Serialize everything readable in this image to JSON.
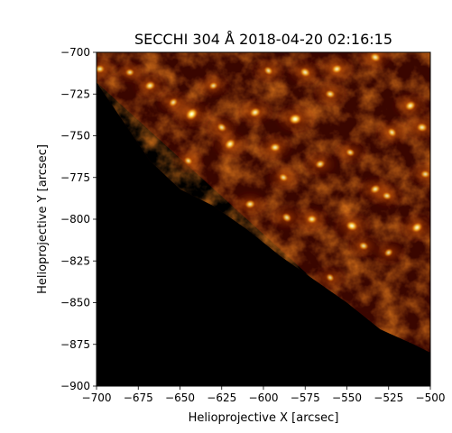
{
  "figure": {
    "title": "SECCHI 304 Å 2018-04-20 02:16:15",
    "xlabel": "Helioprojective X [arcsec]",
    "ylabel": "Helioprojective Y [arcsec]"
  },
  "axes": {
    "x_range": [
      -700,
      -500
    ],
    "y_range": [
      -900,
      -700
    ],
    "x_ticks": [
      -700,
      -675,
      -650,
      -625,
      -600,
      -575,
      -550,
      -525,
      -500
    ],
    "x_tick_labels": [
      "−700",
      "−675",
      "−650",
      "−625",
      "−600",
      "−575",
      "−550",
      "−525",
      "−500"
    ],
    "y_ticks": [
      -700,
      -725,
      -750,
      -775,
      -800,
      -825,
      -850,
      -875,
      -900
    ],
    "y_tick_labels": [
      "−700",
      "−725",
      "−750",
      "−775",
      "−800",
      "−825",
      "−850",
      "−875",
      "−900"
    ]
  },
  "image": {
    "colormap": "sohot (black-red-orange-yellow-white)",
    "limb_edge_points": [
      [
        -700,
        -718
      ],
      [
        -685,
        -740
      ],
      [
        -668,
        -765
      ],
      [
        -650,
        -782
      ],
      [
        -630,
        -792
      ],
      [
        -610,
        -806
      ],
      [
        -590,
        -822
      ],
      [
        -570,
        -836
      ],
      [
        -550,
        -850
      ],
      [
        -530,
        -866
      ],
      [
        -510,
        -875
      ],
      [
        -500,
        -880
      ]
    ],
    "bright_points": [
      [
        -643,
        -737,
        1.0
      ],
      [
        -581,
        -740,
        0.95
      ],
      [
        -575,
        -712,
        0.7
      ],
      [
        -605,
        -736,
        0.75
      ],
      [
        -560,
        -725,
        0.6
      ],
      [
        -620,
        -755,
        0.8
      ],
      [
        -593,
        -757,
        0.7
      ],
      [
        -625,
        -745,
        0.6
      ],
      [
        -668,
        -720,
        0.7
      ],
      [
        -547,
        -804,
        0.85
      ],
      [
        -508,
        -805,
        0.8
      ],
      [
        -571,
        -800,
        0.65
      ],
      [
        -586,
        -799,
        0.6
      ],
      [
        -556,
        -710,
        0.7
      ],
      [
        -533,
        -703,
        0.7
      ],
      [
        -512,
        -732,
        0.75
      ],
      [
        -505,
        -745,
        0.7
      ],
      [
        -523,
        -748,
        0.6
      ],
      [
        -608,
        -791,
        0.65
      ],
      [
        -588,
        -775,
        0.55
      ],
      [
        -533,
        -782,
        0.65
      ],
      [
        -526,
        -786,
        0.55
      ],
      [
        -654,
        -730,
        0.55
      ],
      [
        -698,
        -710,
        0.6
      ],
      [
        -645,
        -765,
        0.5
      ],
      [
        -566,
        -767,
        0.6
      ],
      [
        -540,
        -816,
        0.55
      ],
      [
        -525,
        -820,
        0.5
      ],
      [
        -680,
        -712,
        0.5
      ],
      [
        -597,
        -711,
        0.55
      ],
      [
        -630,
        -720,
        0.5
      ],
      [
        -548,
        -760,
        0.5
      ],
      [
        -615,
        -818,
        0.5
      ],
      [
        -503,
        -773,
        0.55
      ],
      [
        -560,
        -835,
        0.45
      ]
    ]
  }
}
